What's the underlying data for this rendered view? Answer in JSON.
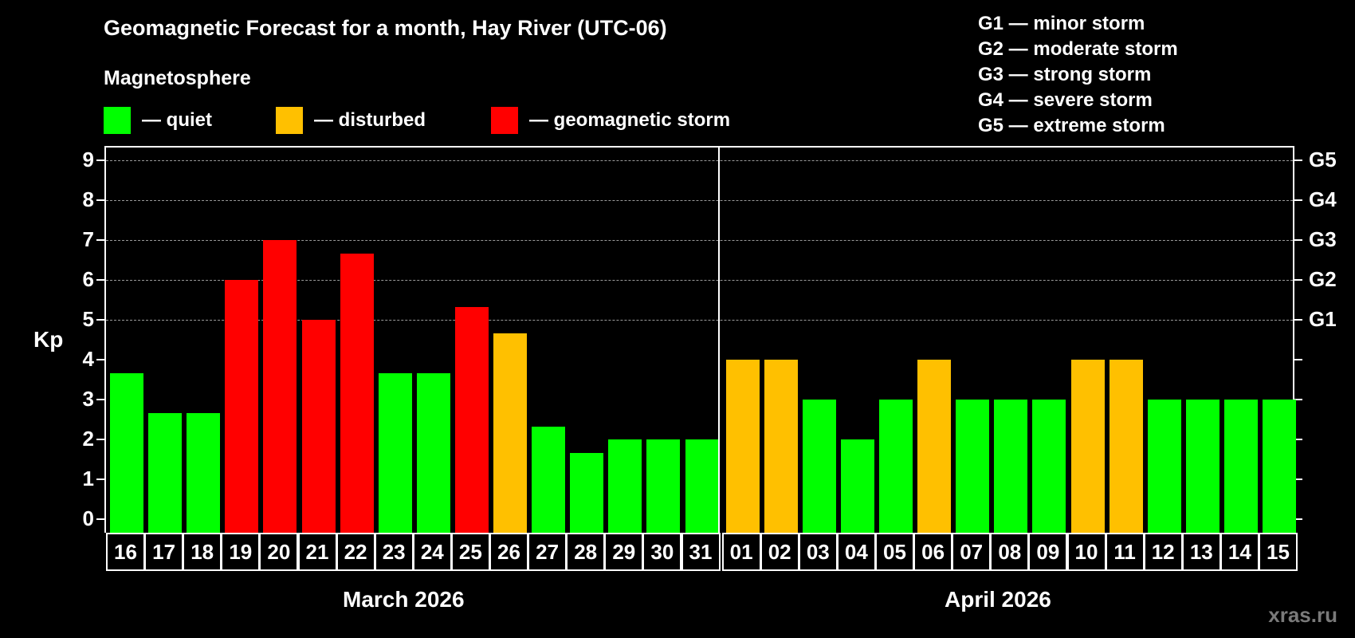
{
  "header": {
    "title": "Geomagnetic Forecast for a month, Hay River (UTC-06)",
    "subtitle": "Magnetosphere"
  },
  "legend": [
    {
      "label": "— quiet",
      "color": "#00ff00"
    },
    {
      "label": "— disturbed",
      "color": "#ffc000"
    },
    {
      "label": "— geomagnetic storm",
      "color": "#ff0000"
    }
  ],
  "storm_scale": [
    "G1 — minor storm",
    "G2 — moderate storm",
    "G3 — strong storm",
    "G4 — severe storm",
    "G5 — extreme storm"
  ],
  "axis": {
    "y_label": "Kp",
    "y_ticks": [
      "0",
      "1",
      "2",
      "3",
      "4",
      "5",
      "6",
      "7",
      "8",
      "9"
    ],
    "g_ticks": [
      {
        "label": "G1",
        "kp": 5
      },
      {
        "label": "G2",
        "kp": 6
      },
      {
        "label": "G3",
        "kp": 7
      },
      {
        "label": "G4",
        "kp": 8
      },
      {
        "label": "G5",
        "kp": 9
      }
    ]
  },
  "months": [
    "March 2026",
    "April 2026"
  ],
  "watermark": "xras.ru",
  "chart_data": {
    "type": "bar",
    "title": "Geomagnetic Forecast for a month, Hay River (UTC-06)",
    "xlabel": "",
    "ylabel": "Kp",
    "ylim": [
      0,
      9
    ],
    "grid": "dashed horizontal lines at Kp 5-9",
    "categories": [
      "16",
      "17",
      "18",
      "19",
      "20",
      "21",
      "22",
      "23",
      "24",
      "25",
      "26",
      "27",
      "28",
      "29",
      "30",
      "31",
      "01",
      "02",
      "03",
      "04",
      "05",
      "06",
      "07",
      "08",
      "09",
      "10",
      "11",
      "12",
      "13",
      "14",
      "15"
    ],
    "month_groups": [
      {
        "label": "March 2026",
        "start": 0,
        "end": 15
      },
      {
        "label": "April 2026",
        "start": 16,
        "end": 30
      }
    ],
    "values": [
      3.67,
      2.67,
      2.67,
      6,
      7,
      5,
      6.67,
      3.67,
      3.67,
      5.33,
      4.67,
      2.33,
      1.67,
      2,
      2,
      2,
      4,
      4,
      3,
      2,
      3,
      4,
      3,
      3,
      3,
      4,
      4,
      3,
      3,
      3,
      3
    ],
    "status": [
      "quiet",
      "quiet",
      "quiet",
      "storm",
      "storm",
      "storm",
      "storm",
      "quiet",
      "quiet",
      "storm",
      "disturbed",
      "quiet",
      "quiet",
      "quiet",
      "quiet",
      "quiet",
      "disturbed",
      "disturbed",
      "quiet",
      "quiet",
      "quiet",
      "disturbed",
      "quiet",
      "quiet",
      "quiet",
      "disturbed",
      "disturbed",
      "quiet",
      "quiet",
      "quiet",
      "quiet"
    ],
    "colors": {
      "quiet": "#00ff00",
      "disturbed": "#ffc000",
      "storm": "#ff0000"
    },
    "legend": [
      "quiet",
      "disturbed",
      "geomagnetic storm"
    ],
    "right_axis": {
      "G1": 5,
      "G2": 6,
      "G3": 7,
      "G4": 8,
      "G5": 9
    }
  }
}
